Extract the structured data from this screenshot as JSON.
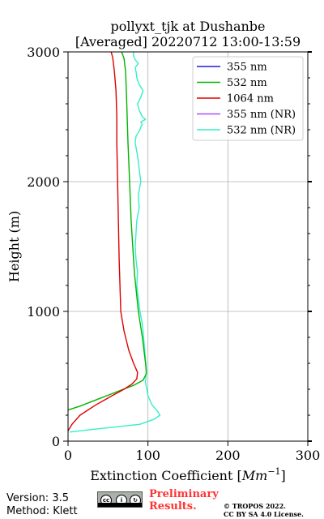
{
  "chart_data": {
    "type": "line",
    "title_line1": "pollyxt_tjk at Dushanbe",
    "title_line2": "[Averaged] 20220712 13:00-13:59",
    "xlabel_text": "Extinction Coefficient [",
    "xlabel_unit": "Mm",
    "xlabel_exp": "−1",
    "xlabel_close": "]",
    "ylabel": "Height (m)",
    "xlim": [
      0,
      300
    ],
    "ylim": [
      0,
      3000
    ],
    "xticks": [
      0,
      100,
      200,
      300
    ],
    "yticks": [
      0,
      1000,
      2000,
      3000
    ],
    "grid": true,
    "legend_position": "top-right",
    "series": [
      {
        "name": "355 nm",
        "color": "#1f1fd6",
        "x": [],
        "y": []
      },
      {
        "name": "532 nm",
        "color": "#00b400",
        "x": [
          0,
          15,
          40,
          65,
          82,
          94,
          98,
          97,
          93,
          88,
          83,
          79,
          77,
          75,
          74,
          73,
          72,
          70,
          67
        ],
        "y": [
          240,
          270,
          330,
          390,
          430,
          470,
          520,
          600,
          800,
          1000,
          1300,
          1700,
          2000,
          2300,
          2500,
          2700,
          2850,
          2950,
          3000
        ]
      },
      {
        "name": "1064 nm",
        "color": "#dd0000",
        "x": [
          0,
          5,
          15,
          35,
          55,
          70,
          80,
          86,
          87,
          82,
          76,
          70,
          66,
          64,
          62,
          61,
          61,
          60,
          58,
          56,
          54
        ],
        "y": [
          80,
          130,
          200,
          280,
          350,
          400,
          440,
          480,
          530,
          600,
          700,
          850,
          1000,
          1400,
          2000,
          2300,
          2500,
          2700,
          2850,
          2950,
          3000
        ]
      },
      {
        "name": "355 nm (NR)",
        "color": "#a64dff",
        "x": [],
        "y": []
      },
      {
        "name": "532 nm (NR)",
        "color": "#33f0c8",
        "x": [
          2,
          30,
          60,
          90,
          108,
          115,
          112,
          105,
          100,
          97,
          98,
          96,
          93,
          90,
          88,
          86,
          87,
          85,
          84,
          85,
          86,
          89,
          88,
          91,
          89,
          87,
          84,
          85,
          88,
          90,
          91,
          93,
          91,
          97,
          93,
          89,
          87,
          91,
          94,
          89,
          86,
          85,
          84,
          88,
          84,
          82,
          82
        ],
        "y": [
          70,
          90,
          110,
          130,
          170,
          200,
          230,
          280,
          350,
          450,
          550,
          700,
          900,
          1000,
          1100,
          1200,
          1300,
          1400,
          1500,
          1600,
          1700,
          1800,
          1900,
          2000,
          2100,
          2200,
          2300,
          2350,
          2380,
          2400,
          2420,
          2440,
          2460,
          2480,
          2500,
          2550,
          2600,
          2650,
          2700,
          2750,
          2800,
          2850,
          2880,
          2910,
          2940,
          2970,
          3000
        ]
      }
    ]
  },
  "footer": {
    "version": "Version: 3.5",
    "method": "Method: Klett",
    "cc_label": "cc by sa",
    "preliminary_line1": "Preliminary",
    "preliminary_line2": "Results.",
    "copyright_line1": "© TROPOS 2022.",
    "copyright_line2": "CC BY SA 4.0 License."
  }
}
